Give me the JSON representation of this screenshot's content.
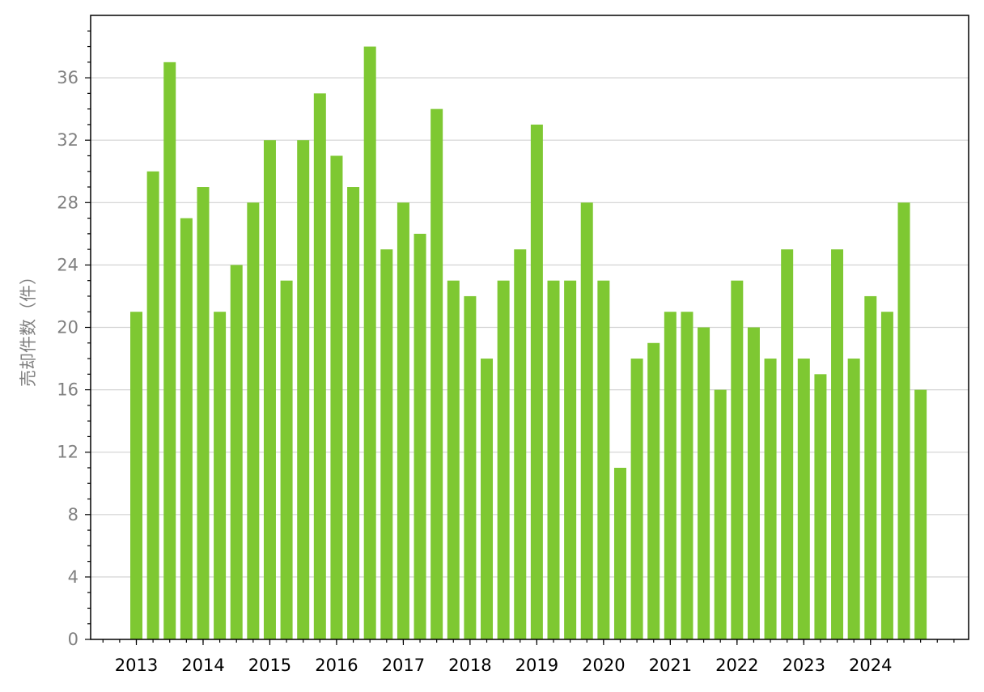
{
  "chart_data": {
    "type": "bar",
    "title": "",
    "xlabel": "",
    "ylabel": "売却件数（件）",
    "ylim": [
      0,
      40
    ],
    "yticks": [
      0,
      4,
      8,
      12,
      16,
      20,
      24,
      28,
      32,
      36
    ],
    "x_tick_labels": [
      "2013",
      "2014",
      "2015",
      "2016",
      "2017",
      "2018",
      "2019",
      "2020",
      "2021",
      "2022",
      "2023",
      "2024"
    ],
    "grid": "horizontal",
    "bar_color": "#7ec832",
    "series": [
      {
        "values": [
          21,
          30,
          37,
          27,
          29,
          21,
          24,
          28,
          32,
          23,
          32,
          35,
          31,
          29,
          38,
          25,
          28,
          26,
          34,
          23,
          22,
          18,
          23,
          25,
          33,
          23,
          23,
          28,
          23,
          11,
          18,
          19,
          21,
          21,
          20,
          16,
          23,
          20,
          18,
          25,
          18,
          17,
          25,
          18,
          22,
          21,
          28,
          16
        ]
      }
    ]
  }
}
